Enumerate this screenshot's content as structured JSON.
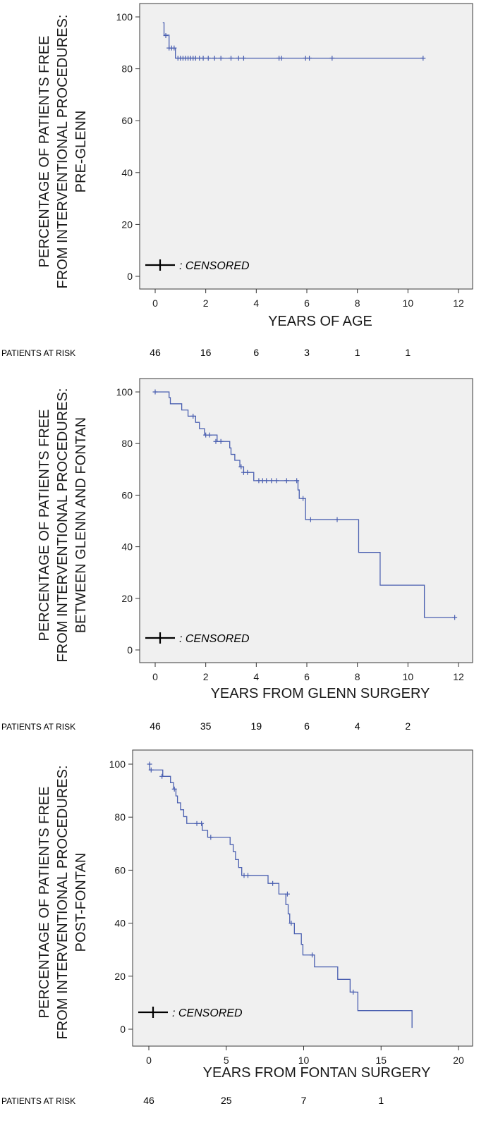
{
  "chart_data": [
    {
      "type": "line",
      "subtype": "kaplan-meier",
      "ylabel_lines": [
        "PERCENTAGE OF PATIENTS FREE",
        "FROM INTERVENTIONAL PROCEDURES:",
        "PRE-GLENN"
      ],
      "xlabel": "YEARS OF AGE",
      "xlim": [
        0,
        12
      ],
      "ylim": [
        0,
        100
      ],
      "xticks": [
        0,
        2,
        4,
        6,
        8,
        10,
        12
      ],
      "yticks": [
        0,
        20,
        40,
        60,
        80,
        100
      ],
      "legend": {
        "label": ": CENSORED",
        "placement": "bottom-left"
      },
      "series": [
        {
          "color": "#4a5fb0",
          "steps": [
            [
              0.3,
              97.8
            ],
            [
              0.35,
              93.0
            ],
            [
              0.55,
              88.0
            ],
            [
              0.8,
              84.1
            ],
            [
              10.6,
              84.1
            ]
          ],
          "censored": [
            [
              0.42,
              92.8
            ],
            [
              0.55,
              88.0
            ],
            [
              0.65,
              88.0
            ],
            [
              0.75,
              88.0
            ],
            [
              0.9,
              84.1
            ],
            [
              1.0,
              84.1
            ],
            [
              1.1,
              84.1
            ],
            [
              1.2,
              84.1
            ],
            [
              1.3,
              84.1
            ],
            [
              1.4,
              84.1
            ],
            [
              1.5,
              84.1
            ],
            [
              1.6,
              84.1
            ],
            [
              1.75,
              84.1
            ],
            [
              1.9,
              84.1
            ],
            [
              2.1,
              84.1
            ],
            [
              2.35,
              84.1
            ],
            [
              2.6,
              84.1
            ],
            [
              3.0,
              84.1
            ],
            [
              3.3,
              84.1
            ],
            [
              3.5,
              84.1
            ],
            [
              4.9,
              84.1
            ],
            [
              5.0,
              84.1
            ],
            [
              5.95,
              84.1
            ],
            [
              6.1,
              84.1
            ],
            [
              7.0,
              84.1
            ],
            [
              10.6,
              84.1
            ]
          ]
        }
      ],
      "risk_table": {
        "label": "PATIENTS AT RISK",
        "entries": [
          {
            "x": 0,
            "value": "46"
          },
          {
            "x": 2,
            "value": "16"
          },
          {
            "x": 4,
            "value": "6"
          },
          {
            "x": 6,
            "value": "3"
          },
          {
            "x": 8,
            "value": "1"
          },
          {
            "x": 10,
            "value": "1"
          }
        ]
      }
    },
    {
      "type": "line",
      "subtype": "kaplan-meier",
      "ylabel_lines": [
        "PERCENTAGE OF PATIENTS FREE",
        "FROM INTERVENTIONAL PROCEDURES:",
        "BETWEEN GLENN AND FONTAN"
      ],
      "xlabel": "YEARS FROM GLENN SURGERY",
      "xlim": [
        0,
        12
      ],
      "ylim": [
        0,
        100
      ],
      "xticks": [
        0,
        2,
        4,
        6,
        8,
        10,
        12
      ],
      "yticks": [
        0,
        20,
        40,
        60,
        80,
        100
      ],
      "legend": {
        "label": ": CENSORED",
        "placement": "bottom-left"
      },
      "series": [
        {
          "color": "#4a5fb0",
          "steps": [
            [
              0,
              100
            ],
            [
              0.55,
              97.8
            ],
            [
              0.6,
              95.4
            ],
            [
              1.05,
              93.0
            ],
            [
              1.3,
              90.6
            ],
            [
              1.6,
              88.2
            ],
            [
              1.75,
              85.8
            ],
            [
              1.95,
              83.3
            ],
            [
              2.45,
              80.8
            ],
            [
              2.95,
              78.3
            ],
            [
              3.0,
              75.8
            ],
            [
              3.15,
              73.5
            ],
            [
              3.35,
              71.0
            ],
            [
              3.5,
              68.8
            ],
            [
              3.9,
              65.6
            ],
            [
              5.65,
              62.0
            ],
            [
              5.7,
              58.7
            ],
            [
              5.95,
              50.5
            ],
            [
              8.05,
              37.8
            ],
            [
              8.9,
              25.1
            ],
            [
              10.65,
              12.6
            ],
            [
              11.85,
              12.6
            ]
          ],
          "censored": [
            [
              0,
              100
            ],
            [
              1.5,
              90.6
            ],
            [
              2.0,
              83.3
            ],
            [
              2.15,
              83.3
            ],
            [
              2.4,
              80.8
            ],
            [
              2.6,
              80.8
            ],
            [
              3.4,
              71.0
            ],
            [
              3.5,
              68.8
            ],
            [
              3.65,
              68.8
            ],
            [
              4.1,
              65.6
            ],
            [
              4.25,
              65.6
            ],
            [
              4.4,
              65.6
            ],
            [
              4.6,
              65.6
            ],
            [
              4.8,
              65.6
            ],
            [
              5.2,
              65.6
            ],
            [
              5.6,
              65.6
            ],
            [
              5.85,
              58.7
            ],
            [
              6.15,
              50.5
            ],
            [
              7.2,
              50.5
            ],
            [
              11.85,
              12.6
            ]
          ]
        }
      ],
      "risk_table": {
        "label": "PATIENTS AT RISK",
        "entries": [
          {
            "x": 0,
            "value": "46"
          },
          {
            "x": 2,
            "value": "35"
          },
          {
            "x": 4,
            "value": "19"
          },
          {
            "x": 6,
            "value": "6"
          },
          {
            "x": 8,
            "value": "4"
          },
          {
            "x": 10,
            "value": "2"
          }
        ]
      }
    },
    {
      "type": "line",
      "subtype": "kaplan-meier",
      "ylabel_lines": [
        "PERCENTAGE OF PATIENTS FREE",
        "FROM INTERVENTIONAL PROCEDURES:",
        "POST-FONTAN"
      ],
      "xlabel": "YEARS FROM FONTAN SURGERY",
      "xlim": [
        0,
        20
      ],
      "ylim": [
        0,
        100
      ],
      "xticks": [
        0,
        5,
        10,
        15,
        20
      ],
      "yticks": [
        0,
        20,
        40,
        60,
        80,
        100
      ],
      "legend": {
        "label": ": CENSORED",
        "placement": "bottom-left"
      },
      "series": [
        {
          "color": "#4a5fb0",
          "steps": [
            [
              0,
              100
            ],
            [
              0.05,
              97.8
            ],
            [
              0.9,
              95.4
            ],
            [
              1.4,
              93.0
            ],
            [
              1.6,
              90.6
            ],
            [
              1.75,
              88.0
            ],
            [
              1.85,
              85.4
            ],
            [
              2.05,
              82.8
            ],
            [
              2.25,
              80.2
            ],
            [
              2.45,
              77.6
            ],
            [
              3.45,
              75.0
            ],
            [
              3.8,
              72.4
            ],
            [
              5.25,
              69.7
            ],
            [
              5.45,
              67.0
            ],
            [
              5.6,
              64.0
            ],
            [
              5.8,
              61.0
            ],
            [
              6.0,
              58.0
            ],
            [
              7.7,
              55.0
            ],
            [
              8.4,
              51.0
            ],
            [
              8.85,
              47.0
            ],
            [
              9.0,
              43.5
            ],
            [
              9.1,
              40.0
            ],
            [
              9.4,
              36.0
            ],
            [
              9.85,
              32.0
            ],
            [
              9.95,
              28.0
            ],
            [
              10.7,
              23.5
            ],
            [
              12.2,
              18.8
            ],
            [
              13.0,
              14.0
            ],
            [
              13.5,
              7.0
            ],
            [
              17.0,
              0.5
            ]
          ],
          "censored": [
            [
              0.05,
              100
            ],
            [
              0.15,
              97.8
            ],
            [
              0.85,
              95.4
            ],
            [
              1.65,
              90.6
            ],
            [
              3.1,
              77.6
            ],
            [
              3.4,
              77.6
            ],
            [
              4.0,
              72.4
            ],
            [
              6.15,
              58.0
            ],
            [
              6.4,
              58.0
            ],
            [
              8.0,
              55.0
            ],
            [
              8.95,
              51.0
            ],
            [
              9.2,
              40.0
            ],
            [
              10.55,
              28.0
            ],
            [
              13.2,
              14.0
            ]
          ]
        }
      ],
      "risk_table": {
        "label": "PATIENTS AT RISK",
        "entries": [
          {
            "x": 0,
            "value": "46"
          },
          {
            "x": 5,
            "value": "25"
          },
          {
            "x": 10,
            "value": "7"
          },
          {
            "x": 15,
            "value": "1"
          }
        ]
      }
    }
  ]
}
